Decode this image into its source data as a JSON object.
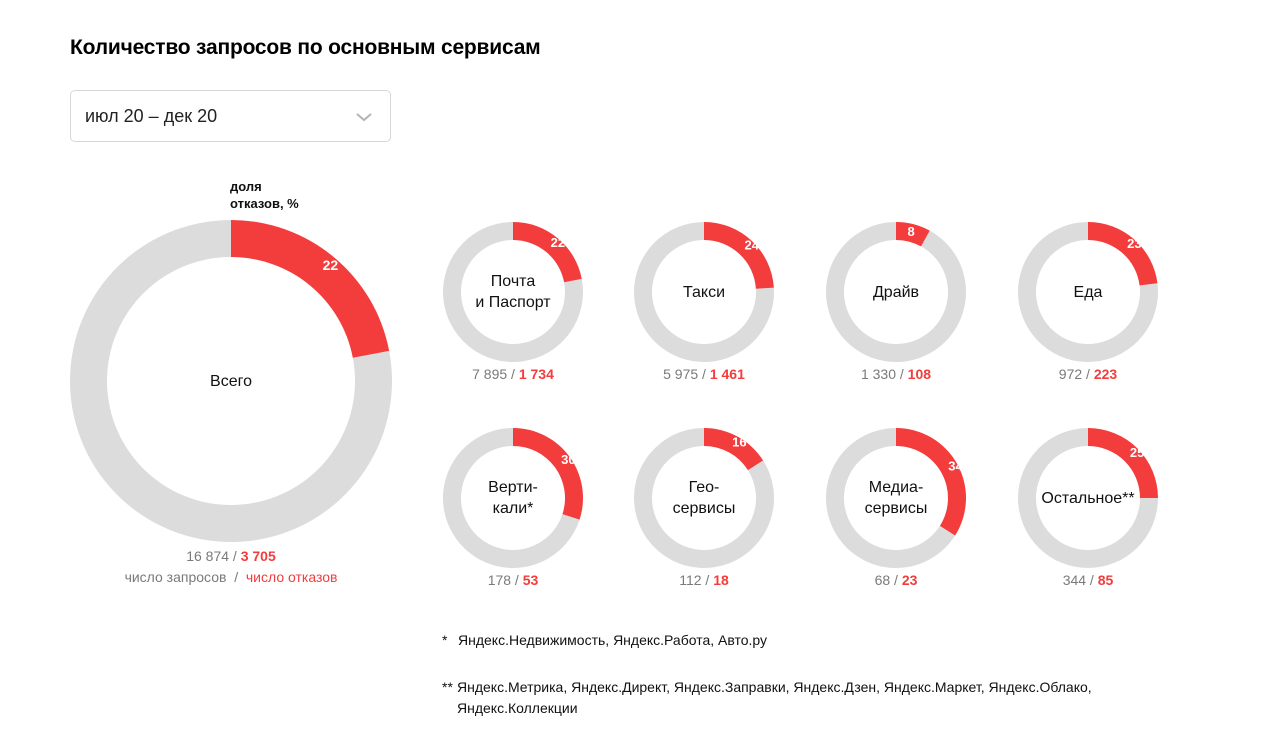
{
  "title": "Количество запросов по основным сервисам",
  "period_select": {
    "value": "июл 20 – дек 20",
    "icon": "chevron-down-icon"
  },
  "colors": {
    "fail": "#f33c3c",
    "rest": "#dcdcdc"
  },
  "share_label": [
    "доля",
    "отказов, %"
  ],
  "legend": {
    "total_label": "число запросов",
    "sep": "/",
    "fail_label": "число отказов"
  },
  "chart_data": {
    "type": "pie",
    "variant": "donut",
    "total": {
      "name": "Всего",
      "requests": "16 874",
      "failures": "3 705",
      "failure_share_pct": 22
    },
    "services": [
      {
        "name": [
          "Почта",
          "и Паспорт"
        ],
        "requests": "7 895",
        "failures": "1 734",
        "failure_share_pct": 22
      },
      {
        "name": [
          "Такси"
        ],
        "requests": "5 975",
        "failures": "1 461",
        "failure_share_pct": 24
      },
      {
        "name": [
          "Драйв"
        ],
        "requests": "1 330",
        "failures": "108",
        "failure_share_pct": 8
      },
      {
        "name": [
          "Еда"
        ],
        "requests": "972",
        "failures": "223",
        "failure_share_pct": 23
      },
      {
        "name": [
          "Верти-",
          "кали*"
        ],
        "requests": "178",
        "failures": "53",
        "failure_share_pct": 30
      },
      {
        "name": [
          "Гео-",
          "сервисы"
        ],
        "requests": "112",
        "failures": "18",
        "failure_share_pct": 16
      },
      {
        "name": [
          "Медиа-",
          "сервисы"
        ],
        "requests": "68",
        "failures": "23",
        "failure_share_pct": 34
      },
      {
        "name": [
          "Остальное**"
        ],
        "requests": "344",
        "failures": "85",
        "failure_share_pct": 25
      }
    ]
  },
  "footnotes": [
    {
      "mark": "*",
      "text": "Яндекс.Недвижимость, Яндекс.Работа, Авто.ру"
    },
    {
      "mark": "**",
      "text": [
        "Яндекс.Метрика, Яндекс.Директ, Яндекс.Заправки, Яндекс.Дзен, Яндекс.Маркет, Яндекс.Облако,",
        "Яндекс.Коллекции"
      ]
    }
  ]
}
